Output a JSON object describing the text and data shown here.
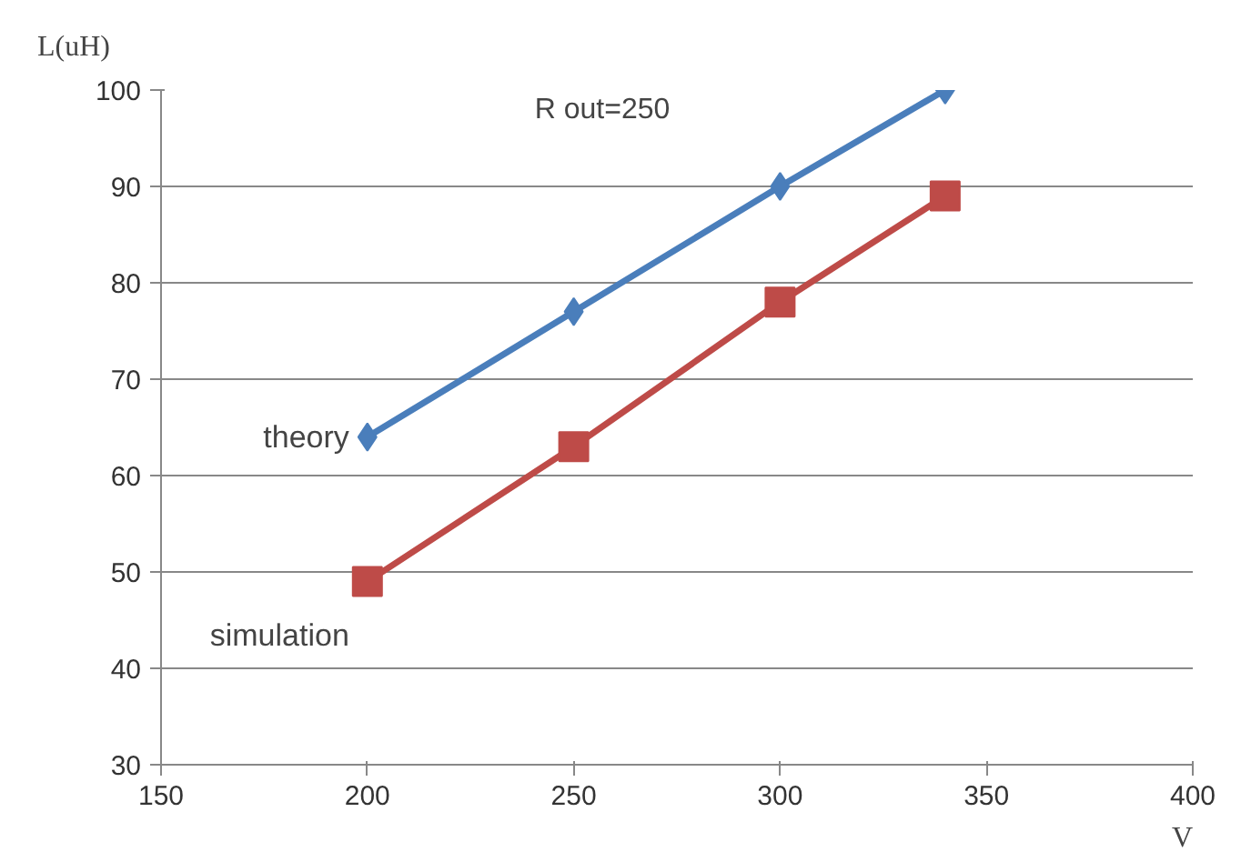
{
  "chart_data": {
    "type": "line",
    "title": "R out=250",
    "xlabel": "V",
    "ylabel": "L(uH)",
    "x": [
      200,
      250,
      300,
      340
    ],
    "series": [
      {
        "name": "theory",
        "color": "#4a7ebb",
        "values": [
          64,
          77,
          90,
          100
        ],
        "marker": "diamond"
      },
      {
        "name": "simulation",
        "color": "#be4b48",
        "values": [
          49,
          63,
          78,
          89
        ],
        "marker": "square"
      }
    ],
    "xlim": [
      150,
      400
    ],
    "xticks": [
      150,
      200,
      250,
      300,
      350,
      400
    ],
    "ylim": [
      30,
      100
    ],
    "yticks": [
      30,
      40,
      50,
      60,
      70,
      80,
      90,
      100
    ],
    "grid": "y"
  }
}
